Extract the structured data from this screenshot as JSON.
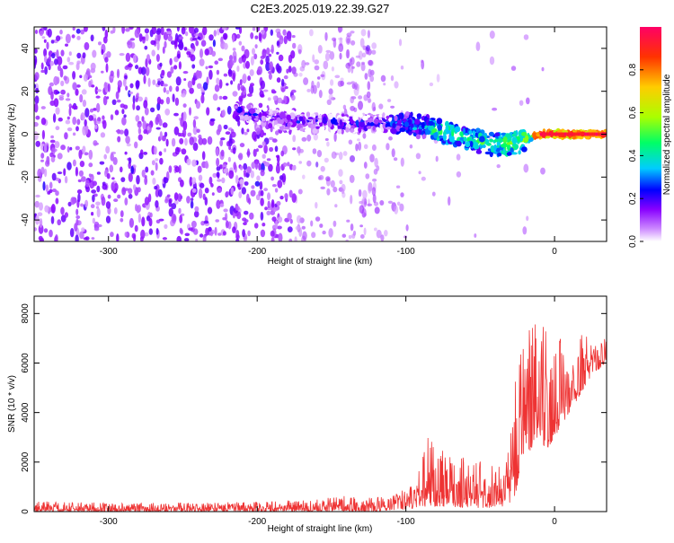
{
  "title": "C2E3.2025.019.22.39.G27",
  "chart_data": [
    {
      "type": "heatmap",
      "xlabel": "Height of straight line (km)",
      "ylabel": "Frequency (Hz)",
      "xlim": [
        -350,
        35
      ],
      "ylim": [
        -50,
        50
      ],
      "xticks": [
        -300,
        -200,
        -100,
        0
      ],
      "yticks": [
        -40,
        -20,
        0,
        20,
        40
      ],
      "colorbar": {
        "label": "Normalized spectral amplitude",
        "range": [
          0,
          1
        ],
        "ticks": [
          "0.0",
          "0.2",
          "0.4",
          "0.6",
          "0.8"
        ],
        "colormap": [
          "#ffffff",
          "#cc88ff",
          "#8800ff",
          "#0000ff",
          "#00ccff",
          "#00ff66",
          "#aaff00",
          "#ffcc00",
          "#ff3300",
          "#ff0066"
        ]
      },
      "ridge": [
        {
          "x": -210,
          "y": 10
        },
        {
          "x": -180,
          "y": 6
        },
        {
          "x": -150,
          "y": 5
        },
        {
          "x": -120,
          "y": 5
        },
        {
          "x": -100,
          "y": 5
        },
        {
          "x": -80,
          "y": 2
        },
        {
          "x": -60,
          "y": -2
        },
        {
          "x": -40,
          "y": -5
        },
        {
          "x": -25,
          "y": -4
        },
        {
          "x": -10,
          "y": 0
        },
        {
          "x": 0,
          "y": 0
        },
        {
          "x": 35,
          "y": 0
        }
      ]
    },
    {
      "type": "line",
      "xlabel": "Height of straight line (km)",
      "ylabel": "SNR (10 * v/v)",
      "xlim": [
        -350,
        35
      ],
      "ylim": [
        0,
        8700
      ],
      "xticks": [
        -300,
        -200,
        -100,
        0
      ],
      "yticks": [
        0,
        2000,
        4000,
        6000,
        8000
      ],
      "color": "#ee3333",
      "envelope": [
        {
          "x": -350,
          "lo": 0,
          "hi": 450
        },
        {
          "x": -300,
          "lo": 0,
          "hi": 350
        },
        {
          "x": -250,
          "lo": 0,
          "hi": 350
        },
        {
          "x": -200,
          "lo": 0,
          "hi": 400
        },
        {
          "x": -160,
          "lo": 0,
          "hi": 500
        },
        {
          "x": -140,
          "lo": 0,
          "hi": 650
        },
        {
          "x": -120,
          "lo": 0,
          "hi": 550
        },
        {
          "x": -100,
          "lo": 100,
          "hi": 900
        },
        {
          "x": -90,
          "lo": 150,
          "hi": 2100
        },
        {
          "x": -85,
          "lo": 200,
          "hi": 3200
        },
        {
          "x": -75,
          "lo": 200,
          "hi": 2500
        },
        {
          "x": -60,
          "lo": 150,
          "hi": 2300
        },
        {
          "x": -45,
          "lo": 150,
          "hi": 2100
        },
        {
          "x": -35,
          "lo": 200,
          "hi": 1800
        },
        {
          "x": -28,
          "lo": 400,
          "hi": 3500
        },
        {
          "x": -25,
          "lo": 1000,
          "hi": 7300
        },
        {
          "x": -20,
          "lo": 2000,
          "hi": 6500
        },
        {
          "x": -12,
          "lo": 3000,
          "hi": 8700
        },
        {
          "x": -5,
          "lo": 2500,
          "hi": 7600
        },
        {
          "x": 5,
          "lo": 3500,
          "hi": 7000
        },
        {
          "x": 15,
          "lo": 4500,
          "hi": 7200
        },
        {
          "x": 25,
          "lo": 5500,
          "hi": 7000
        },
        {
          "x": 35,
          "lo": 6000,
          "hi": 7000
        }
      ]
    }
  ]
}
